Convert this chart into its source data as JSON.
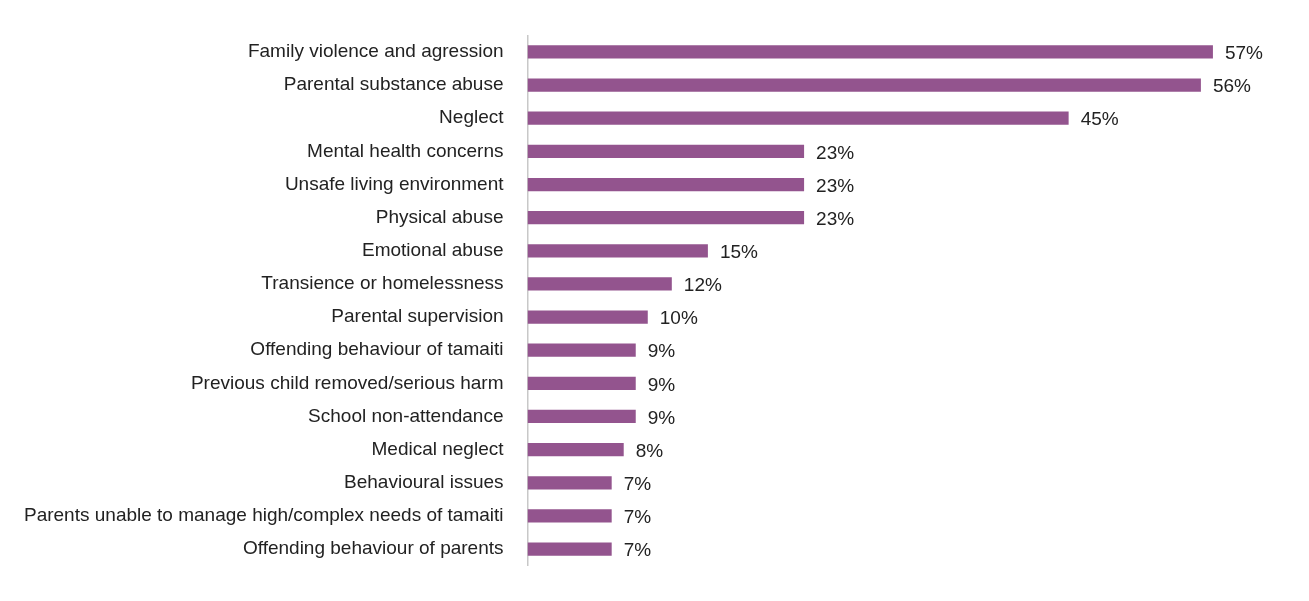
{
  "chart_data": {
    "type": "bar",
    "orientation": "horizontal",
    "categories": [
      "Family violence and agression",
      "Parental substance abuse",
      "Neglect",
      "Mental health concerns",
      "Unsafe living environment",
      "Physical abuse",
      "Emotional abuse",
      "Transience or homelessness",
      "Parental supervision",
      "Offending behaviour of tamaiti",
      "Previous child removed/serious harm",
      "School non-attendance",
      "Medical neglect",
      "Behavioural issues",
      "Parents unable to manage high/complex needs of tamaiti",
      "Offending behaviour of parents"
    ],
    "values": [
      57,
      56,
      45,
      23,
      23,
      23,
      15,
      12,
      10,
      9,
      9,
      9,
      8,
      7,
      7,
      7
    ],
    "value_labels": [
      "57%",
      "56%",
      "45%",
      "23%",
      "23%",
      "23%",
      "15%",
      "12%",
      "10%",
      "9%",
      "9%",
      "9%",
      "8%",
      "7%",
      "7%",
      "7%"
    ],
    "color": "#93548e"
  }
}
